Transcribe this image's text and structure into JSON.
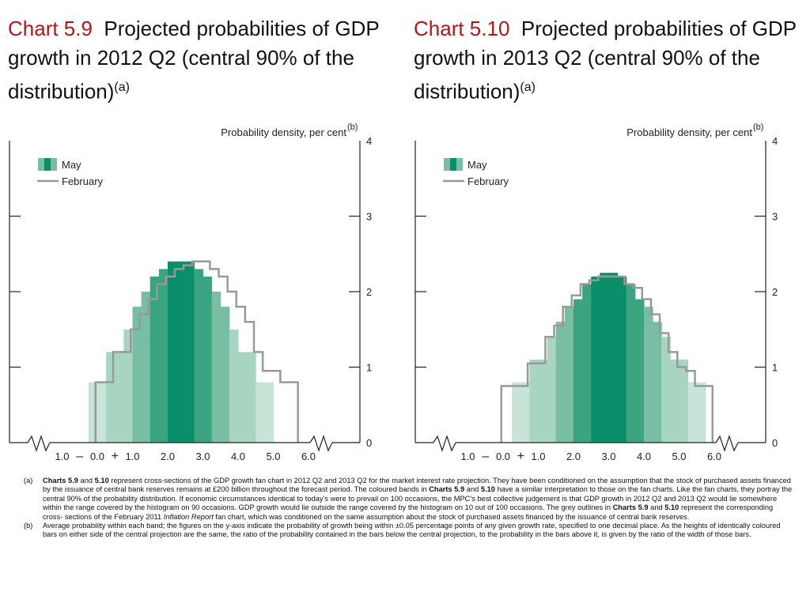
{
  "charts_meta": {
    "left": {
      "title_number": "Chart 5.9",
      "title_text": "Projected probabilities of GDP growth in 2012 Q2 (central 90% of the distribution)",
      "title_sup": "(a)"
    },
    "right": {
      "title_number": "Chart 5.10",
      "title_text": "Projected probabilities of GDP growth in 2013 Q2 (central 90% of the distribution)",
      "title_sup": "(a)"
    }
  },
  "colors": {
    "title_number": "#b01818",
    "band_dark": "#0a8f6a",
    "band_3": "#3aa380",
    "band_2": "#78bea3",
    "band_1": "#a8d5c2",
    "band_0": "#c8e4d8",
    "february_line": "#999999",
    "axis": "#222222"
  },
  "chart_data": [
    {
      "type": "bar",
      "ylabel": "Probability density, per cent",
      "ylabel_sup": "(b)",
      "ylim": [
        0,
        4
      ],
      "y_ticks": [
        "0",
        "1",
        "2",
        "3",
        "4"
      ],
      "x_ticks": [
        "1.0",
        "–",
        "0.0",
        "+",
        "1.0",
        "2.0",
        "3.0",
        "4.0",
        "5.0",
        "6.0"
      ],
      "x_axis_note": "axis broken at both ends; left of 0.0 is negative growth",
      "legend": [
        "May",
        "February"
      ],
      "legend_position": "top-left",
      "grid": false,
      "bin_width": 0.25,
      "series": [
        {
          "name": "May",
          "style": "bars",
          "x_start": -0.25,
          "values": [
            0.8,
            0.8,
            1.2,
            1.2,
            1.5,
            1.8,
            2.0,
            2.2,
            2.3,
            2.4,
            2.4,
            2.4,
            2.3,
            2.2,
            2.0,
            1.8,
            1.5,
            1.2,
            1.2,
            0.8,
            0.8
          ],
          "shade": [
            0,
            0,
            1,
            1,
            1,
            2,
            2,
            3,
            3,
            4,
            4,
            4,
            3,
            3,
            2,
            2,
            1,
            1,
            1,
            0,
            0
          ]
        },
        {
          "name": "February",
          "style": "outline",
          "x_start": -0.05,
          "values": [
            0.8,
            0.8,
            1.2,
            1.2,
            1.5,
            1.7,
            1.9,
            2.1,
            2.2,
            2.3,
            2.35,
            2.4,
            2.4,
            2.3,
            2.2,
            2.0,
            1.8,
            1.6,
            1.2,
            0.95,
            0.95,
            0.8,
            0.8
          ]
        }
      ]
    },
    {
      "type": "bar",
      "ylabel": "Probability density, per cent",
      "ylabel_sup": "(b)",
      "ylim": [
        0,
        4
      ],
      "y_ticks": [
        "0",
        "1",
        "2",
        "3",
        "4"
      ],
      "x_ticks": [
        "1.0",
        "–",
        "0.0",
        "+",
        "1.0",
        "2.0",
        "3.0",
        "4.0",
        "5.0",
        "6.0"
      ],
      "x_axis_note": "axis broken at both ends; left of 0.0 is negative growth",
      "legend": [
        "May",
        "February"
      ],
      "legend_position": "top-left",
      "grid": false,
      "bin_width": 0.25,
      "series": [
        {
          "name": "May",
          "style": "bars",
          "x_start": 0.25,
          "values": [
            0.8,
            0.8,
            1.1,
            1.1,
            1.4,
            1.6,
            1.8,
            1.9,
            2.1,
            2.2,
            2.25,
            2.25,
            2.2,
            2.1,
            1.9,
            1.8,
            1.6,
            1.4,
            1.1,
            1.1,
            0.8,
            0.8
          ],
          "shade": [
            0,
            0,
            1,
            1,
            1,
            2,
            2,
            3,
            3,
            4,
            4,
            4,
            4,
            3,
            3,
            2,
            2,
            1,
            1,
            1,
            0,
            0
          ]
        },
        {
          "name": "February",
          "style": "outline",
          "x_start": -0.05,
          "values": [
            0.75,
            0.75,
            0.75,
            1.05,
            1.05,
            1.4,
            1.55,
            1.8,
            1.95,
            2.1,
            2.15,
            2.2,
            2.2,
            2.2,
            2.1,
            2.05,
            1.9,
            1.7,
            1.45,
            1.2,
            1.0,
            0.95,
            0.75,
            0.75
          ]
        }
      ]
    }
  ],
  "footnotes": {
    "a_tag": "(a)",
    "a_lead": "Charts 5.9",
    "a_and": " and ",
    "a_lead2": "5.10",
    "a_text1": " represent cross-sections of the GDP growth fan chart in 2012 Q2 and 2013 Q2 for the market interest rate projection.  They have been conditioned on the assumption that the stock of purchased assets financed by the issuance of central bank reserves remains at £200 billion throughout the forecast period.  The coloured bands in ",
    "a_b1": "Charts 5.9",
    "a_and2": " and ",
    "a_b2": "5.10",
    "a_text2": " have a similar interpretation to those on the fan charts.  Like the fan charts, they portray the central 90% of the probability distribution.  If economic circumstances identical to today’s were to prevail on 100 occasions, the MPC’s best collective judgement is that GDP growth in 2012 Q2 and 2013 Q2 would lie somewhere within the range covered by the histogram on 90 occasions.  GDP growth would lie outside the range covered by the histogram on 10 out of 100 occasions.  The grey outlines in ",
    "a_b3": "Charts 5.9",
    "a_and3": " and ",
    "a_b4": "5.10",
    "a_text3": " represent the corresponding cross- sections of the February 2011 ",
    "a_italic": "Inflation Report",
    "a_text4": " fan chart, which was conditioned on the same assumption about the stock of purchased assets financed by the issuance of central bank reserves.",
    "b_tag": "(b)",
    "b_text": "Average probability within each band;  the figures on the y-axis indicate the probability of growth being within ±0.05 percentage points of any given growth rate, specified to one decimal place.  As the heights of identically coloured bars on either side of the central projection are the same, the ratio of the probability contained in the bars below the central projection, to the probability in the bars above it, is given by the ratio of the width of those bars."
  }
}
